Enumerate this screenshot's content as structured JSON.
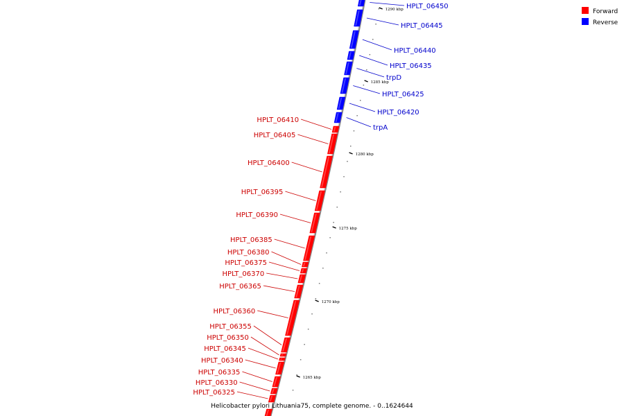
{
  "colors": {
    "forward": "#ff0000",
    "reverse": "#0000ff",
    "backbone": "#999999",
    "labelForward": "#cc0000",
    "labelReverse": "#0000cc"
  },
  "legend": [
    {
      "label": "Forward",
      "color": "#ff0000"
    },
    {
      "label": "Reverse",
      "color": "#0000ff"
    }
  ],
  "caption": "Helicobacter pylori Lithuania75, complete genome. - 0..1624644",
  "ticks": [
    {
      "kbp": 1290,
      "label": "1290 kbp"
    },
    {
      "kbp": 1285,
      "label": "1285 kbp"
    },
    {
      "kbp": 1280,
      "label": "1280 kbp"
    },
    {
      "kbp": 1275,
      "label": "1275 kbp"
    },
    {
      "kbp": 1270,
      "label": "1270 kbp"
    },
    {
      "kbp": 1265,
      "label": "1265 kbp"
    }
  ],
  "genes_reverse": [
    "HPLT_06450",
    "HPLT_06445",
    "HPLT_06440",
    "HPLT_06435",
    "trpD",
    "HPLT_06425",
    "HPLT_06420",
    "trpA"
  ],
  "genes_forward": [
    "HPLT_06410",
    "HPLT_06405",
    "HPLT_06400",
    "HPLT_06395",
    "HPLT_06390",
    "HPLT_06385",
    "HPLT_06380",
    "HPLT_06375",
    "HPLT_06370",
    "HPLT_06365",
    "HPLT_06360",
    "HPLT_06355",
    "HPLT_06350",
    "HPLT_06345",
    "HPLT_06340",
    "HPLT_06335",
    "HPLT_06330",
    "HPLT_06325"
  ]
}
